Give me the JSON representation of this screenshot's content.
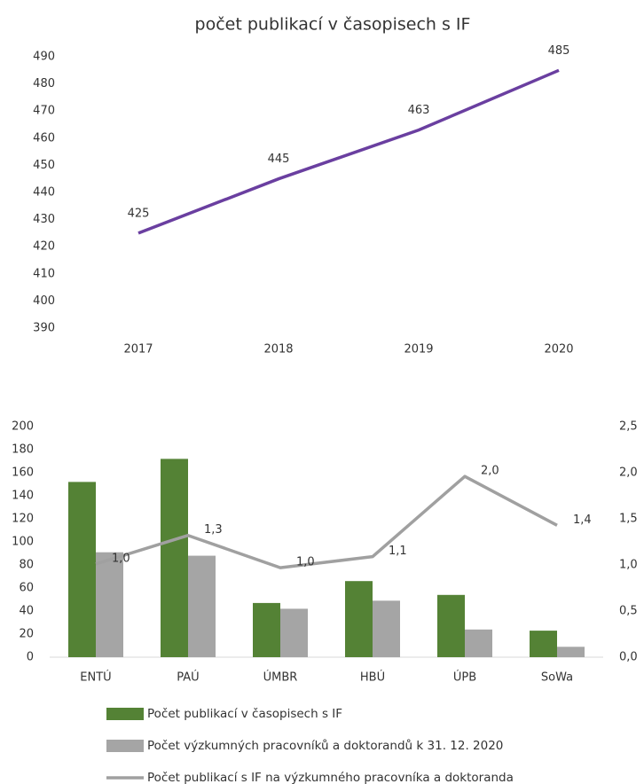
{
  "chart_data": [
    {
      "type": "line",
      "title": "počet publikací v časopisech s IF",
      "categories": [
        "2017",
        "2018",
        "2019",
        "2020"
      ],
      "values": [
        425,
        445,
        463,
        485
      ],
      "color": "#6a3fa0",
      "ylim": [
        390,
        490
      ],
      "yticks": [
        390,
        400,
        410,
        420,
        430,
        440,
        450,
        460,
        470,
        480,
        490
      ],
      "grid": false
    },
    {
      "type": "bar",
      "categories": [
        "ENTÚ",
        "PAÚ",
        "ÚMBR",
        "HBÚ",
        "ÚPB",
        "SoWa"
      ],
      "series": [
        {
          "name": "Počet publikací v časopisech s IF",
          "color": "#548235",
          "values": [
            152,
            172,
            47,
            66,
            54,
            23
          ]
        },
        {
          "name": "Počet výzkumných pracovníků a doktorandů k 31. 12. 2020",
          "color": "#a5a5a5",
          "values": [
            91,
            88,
            42,
            49,
            24,
            9
          ]
        },
        {
          "name": "Počet publikací s IF na výzkumného pracovníka a doktoranda",
          "color": "#a0a0a0",
          "type": "line",
          "axis": "y2",
          "values": [
            1.01,
            1.32,
            0.97,
            1.09,
            1.96,
            1.43
          ],
          "value_labels": [
            "1,0",
            "1,3",
            "1,0",
            "1,1",
            "2,0",
            "1,4"
          ]
        }
      ],
      "ylim": [
        0,
        200
      ],
      "yticks": [
        0,
        20,
        40,
        60,
        80,
        100,
        120,
        140,
        160,
        180,
        200
      ],
      "y2lim": [
        0,
        2.5
      ],
      "y2ticks": [
        {
          "value": 0,
          "label": "0,0"
        },
        {
          "value": 0.5,
          "label": "0,5"
        },
        {
          "value": 1,
          "label": "1,0"
        },
        {
          "value": 1.5,
          "label": "1,5"
        },
        {
          "value": 2,
          "label": "2,0"
        },
        {
          "value": 2.5,
          "label": "2,5"
        }
      ],
      "grid": false,
      "legend": "bottom"
    }
  ]
}
